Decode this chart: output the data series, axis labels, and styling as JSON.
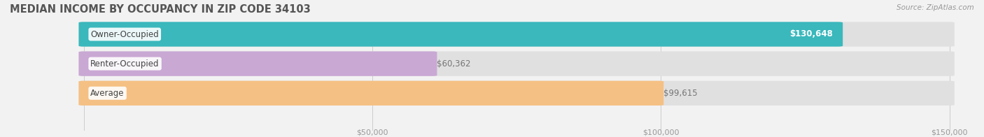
{
  "title": "Median Income by Occupancy in Zip Code 34103",
  "source": "Source: ZipAtlas.com",
  "categories": [
    "Owner-Occupied",
    "Renter-Occupied",
    "Average"
  ],
  "values": [
    130648,
    60362,
    99615
  ],
  "bar_colors": [
    "#3ab8bc",
    "#c9a8d4",
    "#f5c083"
  ],
  "bar_labels": [
    "$130,648",
    "$60,362",
    "$99,615"
  ],
  "label_inside": [
    true,
    false,
    false
  ],
  "xlim": [
    0,
    150000
  ],
  "xticks": [
    0,
    50000,
    100000,
    150000
  ],
  "xticklabels": [
    "",
    "$50,000",
    "$100,000",
    "$150,000"
  ],
  "background_color": "#f2f2f2",
  "bar_bg_color": "#e0e0e0",
  "title_fontsize": 10.5,
  "label_fontsize": 8.5,
  "tick_fontsize": 8,
  "source_fontsize": 7.5
}
